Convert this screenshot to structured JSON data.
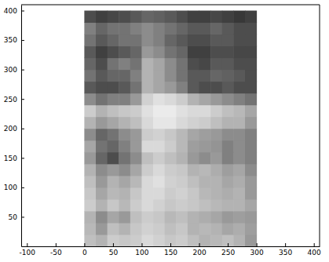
{
  "chart_data": {
    "type": "heatmap",
    "xlim": [
      -110,
      410
    ],
    "ylim": [
      0,
      410
    ],
    "xticks": [
      -100,
      -50,
      0,
      50,
      100,
      150,
      200,
      250,
      300,
      350,
      400
    ],
    "yticks": [
      50,
      100,
      150,
      200,
      250,
      300,
      350,
      400
    ],
    "x_edges": [
      0,
      20,
      40,
      60,
      80,
      100,
      120,
      140,
      160,
      180,
      200,
      220,
      240,
      260,
      280,
      300
    ],
    "y_edges": [
      0,
      20,
      40,
      60,
      80,
      100,
      120,
      140,
      160,
      180,
      200,
      220,
      240,
      260,
      280,
      300,
      320,
      340,
      360,
      380,
      400
    ],
    "z": [
      [
        0.75,
        0.7,
        0.8,
        0.78,
        0.8,
        0.85,
        0.82,
        0.78,
        0.8,
        0.75,
        0.7,
        0.72,
        0.75,
        0.7,
        0.6
      ],
      [
        0.72,
        0.6,
        0.75,
        0.7,
        0.78,
        0.82,
        0.8,
        0.75,
        0.78,
        0.7,
        0.72,
        0.7,
        0.65,
        0.68,
        0.62
      ],
      [
        0.7,
        0.55,
        0.65,
        0.6,
        0.75,
        0.8,
        0.78,
        0.72,
        0.75,
        0.7,
        0.68,
        0.65,
        0.6,
        0.62,
        0.6
      ],
      [
        0.8,
        0.7,
        0.78,
        0.72,
        0.8,
        0.85,
        0.82,
        0.78,
        0.8,
        0.78,
        0.75,
        0.72,
        0.7,
        0.7,
        0.65
      ],
      [
        0.78,
        0.65,
        0.72,
        0.7,
        0.78,
        0.85,
        0.85,
        0.8,
        0.82,
        0.78,
        0.72,
        0.7,
        0.68,
        0.7,
        0.6
      ],
      [
        0.75,
        0.6,
        0.7,
        0.65,
        0.72,
        0.85,
        0.88,
        0.82,
        0.8,
        0.75,
        0.7,
        0.7,
        0.65,
        0.68,
        0.6
      ],
      [
        0.7,
        0.55,
        0.6,
        0.55,
        0.65,
        0.8,
        0.85,
        0.8,
        0.78,
        0.7,
        0.72,
        0.68,
        0.62,
        0.65,
        0.55
      ],
      [
        0.6,
        0.4,
        0.3,
        0.45,
        0.55,
        0.75,
        0.8,
        0.75,
        0.7,
        0.6,
        0.55,
        0.6,
        0.5,
        0.55,
        0.5
      ],
      [
        0.65,
        0.45,
        0.4,
        0.5,
        0.6,
        0.85,
        0.85,
        0.8,
        0.72,
        0.62,
        0.6,
        0.58,
        0.5,
        0.55,
        0.5
      ],
      [
        0.55,
        0.4,
        0.45,
        0.55,
        0.6,
        0.8,
        0.82,
        0.78,
        0.72,
        0.65,
        0.62,
        0.6,
        0.55,
        0.55,
        0.5
      ],
      [
        0.7,
        0.6,
        0.65,
        0.7,
        0.75,
        0.85,
        0.9,
        0.9,
        0.85,
        0.82,
        0.8,
        0.75,
        0.7,
        0.7,
        0.6
      ],
      [
        0.8,
        0.7,
        0.75,
        0.78,
        0.8,
        0.88,
        0.92,
        0.92,
        0.88,
        0.85,
        0.85,
        0.8,
        0.75,
        0.72,
        0.65
      ],
      [
        0.55,
        0.45,
        0.5,
        0.5,
        0.6,
        0.82,
        0.88,
        0.85,
        0.8,
        0.7,
        0.65,
        0.6,
        0.55,
        0.5,
        0.45
      ],
      [
        0.35,
        0.3,
        0.3,
        0.35,
        0.45,
        0.7,
        0.65,
        0.6,
        0.5,
        0.35,
        0.3,
        0.3,
        0.35,
        0.3,
        0.3
      ],
      [
        0.45,
        0.35,
        0.4,
        0.4,
        0.5,
        0.7,
        0.65,
        0.55,
        0.45,
        0.35,
        0.35,
        0.4,
        0.38,
        0.35,
        0.3
      ],
      [
        0.4,
        0.3,
        0.45,
        0.5,
        0.45,
        0.7,
        0.65,
        0.55,
        0.45,
        0.3,
        0.28,
        0.35,
        0.35,
        0.3,
        0.3
      ],
      [
        0.35,
        0.25,
        0.3,
        0.35,
        0.4,
        0.6,
        0.55,
        0.45,
        0.4,
        0.25,
        0.25,
        0.3,
        0.3,
        0.28,
        0.28
      ],
      [
        0.45,
        0.35,
        0.4,
        0.45,
        0.45,
        0.55,
        0.5,
        0.4,
        0.35,
        0.3,
        0.3,
        0.35,
        0.35,
        0.3,
        0.3
      ],
      [
        0.5,
        0.4,
        0.45,
        0.45,
        0.5,
        0.55,
        0.5,
        0.45,
        0.4,
        0.35,
        0.35,
        0.4,
        0.35,
        0.3,
        0.3
      ],
      [
        0.3,
        0.25,
        0.28,
        0.3,
        0.35,
        0.4,
        0.38,
        0.35,
        0.3,
        0.25,
        0.25,
        0.28,
        0.25,
        0.22,
        0.25
      ]
    ]
  }
}
